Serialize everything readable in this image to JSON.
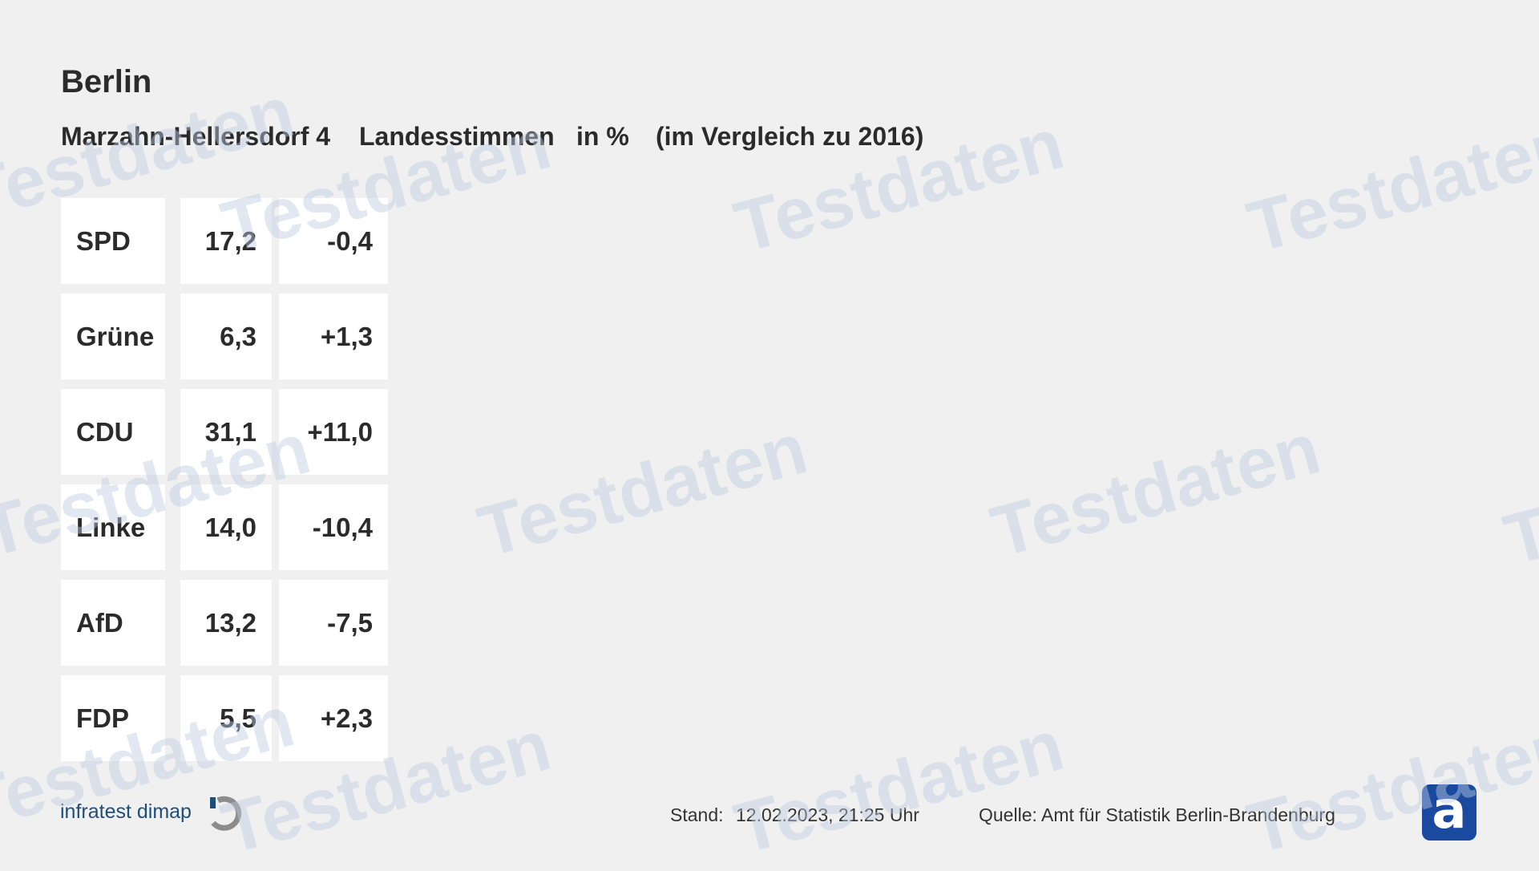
{
  "header": {
    "title": "Berlin",
    "subtitle": [
      "Marzahn-Hellersdorf 4",
      "Landesstimmen",
      "in %",
      "(im Vergleich zu 2016)"
    ]
  },
  "table": {
    "rows": [
      [
        "SPD",
        "17,2",
        "-0,4"
      ],
      [
        "Grüne",
        "6,3",
        "+1,3"
      ],
      [
        "CDU",
        "31,1",
        "+11,0"
      ],
      [
        "Linke",
        "14,0",
        "-10,4"
      ],
      [
        "AfD",
        "13,2",
        "-7,5"
      ],
      [
        "FDP",
        "5,5",
        "+2,3"
      ]
    ]
  },
  "footer": {
    "brand": "infratest dimap",
    "stand_label": "Stand:",
    "stand": "12.02.2023, 21:25 Uhr",
    "source": "Quelle: Amt für Statistik Berlin-Brandenburg"
  },
  "watermark": "Testdaten"
}
